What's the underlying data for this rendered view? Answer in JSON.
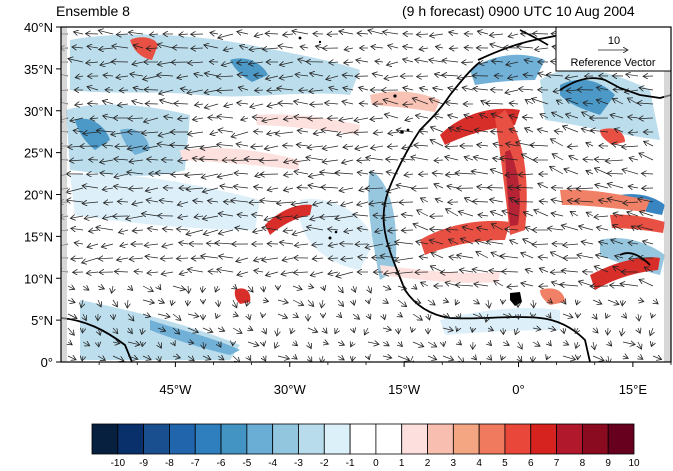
{
  "header": {
    "left_title": "Ensemble 8",
    "right_title": "(9 h forecast) 0900 UTC 10 Aug 2004"
  },
  "map": {
    "lat_labels": [
      "40°N",
      "35°N",
      "30°N",
      "25°N",
      "20°N",
      "15°N",
      "10°N",
      "5°N",
      "0°"
    ],
    "lon_labels": [
      "45°W",
      "30°W",
      "15°W",
      "0°",
      "15°E"
    ],
    "lon_range": [
      -60,
      20
    ],
    "lat_range": [
      0,
      40
    ]
  },
  "reference_vector": {
    "value": "10",
    "label": "Reference Vector"
  },
  "colorbar": {
    "labels": [
      "-10",
      "-9",
      "-8",
      "-7",
      "-6",
      "-5",
      "-4",
      "-3",
      "-2",
      "-1",
      "0",
      "1",
      "2",
      "3",
      "4",
      "5",
      "6",
      "7",
      "8",
      "9",
      "10"
    ],
    "colors": [
      "#08203f",
      "#0a306b",
      "#1a4f8f",
      "#2166ac",
      "#2f7fbf",
      "#4393c3",
      "#6aadd5",
      "#92c5de",
      "#b8dcec",
      "#dcf0fa",
      "#ffffff",
      "#ffffff",
      "#fde0dd",
      "#f8bfb0",
      "#f4a582",
      "#f07a5e",
      "#e8473a",
      "#d6231f",
      "#b2182b",
      "#8a0b1f",
      "#67001f"
    ]
  }
}
